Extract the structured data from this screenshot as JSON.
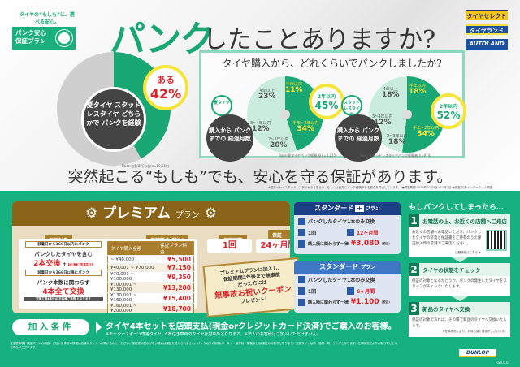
{
  "logo": {
    "tagline": "タイヤの“もしも”に、選べる安心。",
    "name_line1": "パンク安心",
    "name_line2": "保証プラン"
  },
  "header": {
    "title_accent": "パンク",
    "title_rest": "したことありますか?"
  },
  "brands": [
    "タイヤセレクト",
    "タイヤランド",
    "AUTOLAND"
  ],
  "survey": {
    "center_text": "夏タイヤ スタッドレスタイヤ どちらかで パンクを経験",
    "yes_label": "ある",
    "yes_percent": "42%",
    "yes_value": 42,
    "source": "Base:自動車所有者(n=10,569)",
    "colors": {
      "green": "#19a873",
      "grey": "#cfcfcf"
    }
  },
  "duration": {
    "question": "タイヤ購入から、どれくらいでパンクしましたか?",
    "axis_caption": "購入から パンクまでの 経過月数",
    "charts": [
      {
        "tire": "夏タイヤ",
        "total_label": "2年以内",
        "total": "45%",
        "source": "Base:夏タイヤパンク経験者(n=4,215)",
        "slices": [
          {
            "label": "半年以内",
            "value": 11,
            "text": "11%"
          },
          {
            "label": "半年~2年以内",
            "value": 34,
            "text": "34%"
          },
          {
            "label": "2~3年以内",
            "value": 20,
            "text": "20%"
          },
          {
            "label": "3~4年以内",
            "value": 12,
            "text": "12%"
          },
          {
            "label": "4年以上",
            "value": 23,
            "text": "23%"
          }
        ]
      },
      {
        "tire": "スタッドレスタイヤ",
        "total_label": "2年以内",
        "total": "52%",
        "source": "Base:スタッドレスタイヤパンク経験者(n=974)",
        "slices": [
          {
            "label": "半年以内",
            "value": 18,
            "text": "18%"
          },
          {
            "label": "半年~2年以内",
            "value": 34,
            "text": "34%"
          },
          {
            "label": "2~3年以内",
            "value": 18,
            "text": "18%"
          },
          {
            "label": "3~4年以内",
            "value": 12,
            "text": "12%"
          },
          {
            "label": "4年以上",
            "value": 18,
            "text": "18%"
          }
        ]
      }
    ],
    "colors": {
      "dark": "#19a873",
      "light": "#c9ecdc"
    }
  },
  "tagline": "突然起こる“もしも”でも、安心を守る保証があります。",
  "survey_note": "※夏タイヤ・スタッドレスタイヤのどちらか、もしくは両方にパンク経験がある割合を算出しています。 ●調査期間:2019年10月5日~11月7日 ●調査方法:インターネット調査",
  "premium": {
    "title": "プレミアム",
    "title_suffix": "プラン",
    "coverage_label": "保証対象",
    "coverage": [
      {
        "cond": "装着日から366日以内にパンク",
        "line1": "パンクしたタイヤを含む",
        "line2": "2本交換",
        "plus": "交換工賃2本分無料"
      },
      {
        "cond": "装着日から366日以降にパンク",
        "line1": "パンク本数に関わらず",
        "line2": "4本全て交換",
        "note": "交換工賃4本分は お客様ご負担 となります"
      }
    ],
    "fee_label": "保証料金(税込)",
    "fee_headers": [
      "タイヤ購入金額",
      "保証プラン料金"
    ],
    "fees": [
      [
        "~ ¥40,000",
        "¥5,500"
      ],
      [
        "¥40,001 ~ ¥70,000",
        "¥7,150"
      ],
      [
        "¥70,001 ~ ¥100,000",
        "¥9,350"
      ],
      [
        "¥100,001 ~ ¥130,000",
        "¥13,200"
      ],
      [
        "¥130,001 ~ ¥160,000",
        "¥15,400"
      ],
      [
        "¥160,001 ~ ¥200,000",
        "¥18,700"
      ],
      [
        "¥200,001 ~",
        "¥22,000"
      ]
    ],
    "count_label": "保証回数",
    "count": "1回",
    "period_label": "保証期間",
    "period": "24ヶ月間",
    "coupon": {
      "line1": "プレミアムプランに加入し、",
      "line2": "保証期間2年後まで無事故",
      "line3": "だった方には",
      "headline": "無事故お祝いクーポン",
      "line4": "プレゼント!"
    }
  },
  "standard_plus": {
    "title": "スタンダード",
    "title_suffix": "プラン",
    "plus": "+",
    "coverage": "パンクしたタイヤ1本のみ交換",
    "count": "1回",
    "period": "12ヶ月間",
    "price_label": "購入額に関わらず一律",
    "price": "¥3,080",
    "tax": "(税込)"
  },
  "standard": {
    "title": "スタンダード",
    "title_suffix": "プラン",
    "coverage": "パンクしたタイヤ1本のみ交換",
    "count": "1回",
    "period": "6ヶ月間",
    "price_label": "購入額に関わらず一律",
    "price": "¥1,100",
    "tax": "(税込)"
  },
  "steps": {
    "title": "もしパンクしてしまったら…",
    "items": [
      {
        "num": "1",
        "title": "お電話の上、お近くの店舗へご来店",
        "body": "お近くの店舗へお電話いただき、パンクしたタイヤの装着と保証書をご持参のうえ保証加入時の店舗でご来店ください。",
        "link": "店舗検索はこちら ▶"
      },
      {
        "num": "2",
        "title": "タイヤの状態をチェック",
        "body": "保証の対象となるかどうか、パンクの発生したタイヤをスタッフがチェックいたします。"
      },
      {
        "num": "3",
        "title": "新品のタイヤへ交換",
        "body": "保証の対象であれば、その場で新品のタイヤへ交換いたします。",
        "note": "※在庫状況により、お待ち頂く場合がございます。"
      }
    ]
  },
  "condition": {
    "label": "加入条件",
    "text": "タイヤ4本セットを店頭支払(現金orクレジットカード決済)でご購入のお客様。",
    "note": "※モータースポーツ専用タイヤ、6本付き車両のタイヤは対象外となります。※法人のお客様はご加入いただけません。"
  },
  "fine_print": "【注意事項】保証プランの内容・ご加入条件等の詳細は店頭スタッフへお問い合わせください。保証書の提示がない場合は保証を受けられません。パンク以外の損傷(バースト・偏摩耗・亀裂など)は保証の対象外となります。交換タイヤは同一銘柄・同一サイズとなります。在庫状況によりお取り寄せとなる場合がございます。",
  "footer_brand": "DUNLOP",
  "code": "RS4.0.0"
}
